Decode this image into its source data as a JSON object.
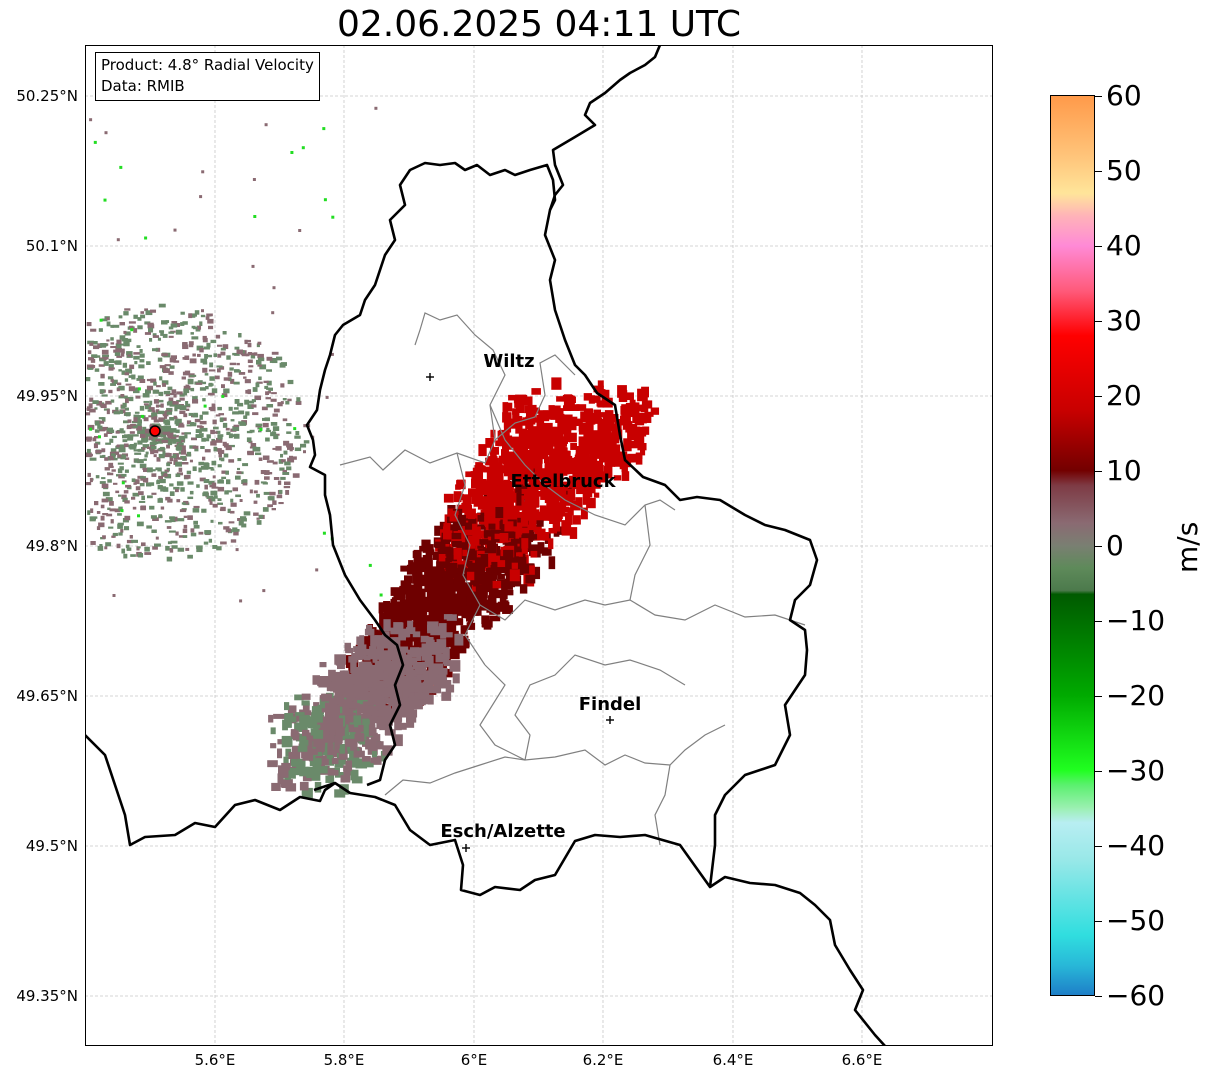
{
  "title": "02.06.2025 04:11 UTC",
  "info_box": {
    "product": "Product: 4.8° Radial Velocity",
    "data": "Data: RMIB"
  },
  "axes": {
    "lat_ticks": [
      "50.25°N",
      "50.1°N",
      "49.95°N",
      "49.8°N",
      "49.65°N",
      "49.5°N",
      "49.35°N"
    ],
    "lon_ticks": [
      "5.6°E",
      "5.8°E",
      "6°E",
      "6.2°E",
      "6.4°E",
      "6.6°E"
    ],
    "gridlines": true
  },
  "cities": [
    {
      "name": "Wiltz"
    },
    {
      "name": "Ettelbruck"
    },
    {
      "name": "Findel"
    },
    {
      "name": "Esch/Alzette"
    }
  ],
  "radar_site_marker": {
    "color": "#ff0000"
  },
  "colorbar": {
    "unit": "m/s",
    "ticks": [
      "60",
      "50",
      "40",
      "30",
      "20",
      "10",
      "0",
      "−10",
      "−20",
      "−30",
      "−40",
      "−50",
      "−60"
    ],
    "range": [
      -60,
      60
    ],
    "stops": [
      {
        "value": 60,
        "color": "#ff9a4a"
      },
      {
        "value": 52,
        "color": "#ffc47a"
      },
      {
        "value": 47,
        "color": "#ffe59a"
      },
      {
        "value": 44,
        "color": "#ffb3b8"
      },
      {
        "value": 40,
        "color": "#ff8ad6"
      },
      {
        "value": 34,
        "color": "#ff5a7a"
      },
      {
        "value": 28,
        "color": "#ff0000"
      },
      {
        "value": 18,
        "color": "#c80000"
      },
      {
        "value": 10,
        "color": "#730000"
      },
      {
        "value": 8,
        "color": "#7e3b45"
      },
      {
        "value": 3,
        "color": "#8a6a72"
      },
      {
        "value": 0,
        "color": "#7a7f72"
      },
      {
        "value": -3,
        "color": "#5e8a5a"
      },
      {
        "value": -6,
        "color": "#4c7a4c"
      },
      {
        "value": -6.5,
        "color": "#005a00"
      },
      {
        "value": -20,
        "color": "#00aa00"
      },
      {
        "value": -30,
        "color": "#20ff20"
      },
      {
        "value": -32,
        "color": "#5cf070"
      },
      {
        "value": -35,
        "color": "#9af0b0"
      },
      {
        "value": -37,
        "color": "#b8eef2"
      },
      {
        "value": -42,
        "color": "#98e8e8"
      },
      {
        "value": -52,
        "color": "#30dedf"
      },
      {
        "value": -56,
        "color": "#28b8d8"
      },
      {
        "value": -60,
        "color": "#1e7fc8"
      }
    ]
  },
  "colors": {
    "border": "#000000",
    "canton_border": "#808080",
    "gridline": "#c8c8c8",
    "echo_strong_red": "#c80000",
    "echo_dark_red": "#6e0000",
    "echo_mauve": "#8a6a72",
    "echo_green_grey": "#6a8a6a"
  }
}
